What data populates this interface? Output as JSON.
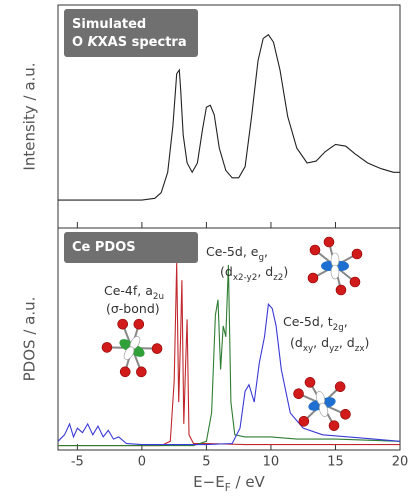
{
  "chart_data": [
    {
      "type": "line",
      "title": [
        [
          {
            "text": "Simulated"
          }
        ],
        [
          {
            "text": "O "
          },
          {
            "text": "K",
            "italic": true
          },
          {
            "text": "XAS spectra"
          }
        ]
      ],
      "y_label": "Intensity / a.u.",
      "xlim": [
        -6.5,
        20
      ],
      "xticks": [
        -5,
        0,
        5,
        10,
        15,
        20
      ],
      "ylim": [
        -0.15,
        1.05
      ],
      "series": [
        {
          "color": "#222222",
          "x": [
            -6.5,
            0,
            1,
            1.5,
            2,
            2.4,
            2.7,
            2.9,
            3.0,
            3.2,
            3.5,
            3.9,
            4.3,
            4.7,
            5.0,
            5.3,
            5.6,
            6.0,
            6.5,
            7.0,
            7.5,
            8.0,
            8.5,
            9.0,
            9.4,
            9.8,
            10.2,
            10.7,
            11.3,
            12.0,
            12.8,
            13.5,
            14.2,
            15.0,
            15.8,
            16.5,
            17.5,
            18.5,
            19.5,
            20
          ],
          "values": [
            0,
            0,
            0.01,
            0.04,
            0.15,
            0.4,
            0.68,
            0.7,
            0.6,
            0.35,
            0.2,
            0.15,
            0.2,
            0.38,
            0.5,
            0.51,
            0.46,
            0.28,
            0.16,
            0.12,
            0.12,
            0.18,
            0.45,
            0.75,
            0.87,
            0.89,
            0.85,
            0.7,
            0.45,
            0.28,
            0.2,
            0.21,
            0.26,
            0.3,
            0.29,
            0.25,
            0.2,
            0.17,
            0.15,
            0.15
          ]
        }
      ]
    },
    {
      "type": "line",
      "title": [
        [
          {
            "text": "Ce PDOS"
          }
        ]
      ],
      "y_label": "PDOS / a.u.",
      "x_label": [
        {
          "text": "E−E"
        },
        {
          "text": "F",
          "sub": true
        },
        {
          "text": " / eV"
        }
      ],
      "xlim": [
        -6.5,
        20
      ],
      "xticks": [
        -5,
        0,
        5,
        10,
        15,
        20
      ],
      "ylim": [
        -0.02,
        1
      ],
      "annotations": [
        [
          [
            {
              "text": "Ce-4f, a"
            },
            {
              "text": "2u",
              "sub": true
            }
          ],
          [
            {
              "text": "(σ-bond)"
            }
          ]
        ],
        [
          [
            {
              "text": "Ce-5d, e"
            },
            {
              "text": "g",
              "sub": true
            },
            {
              "text": ","
            }
          ],
          [
            {
              "text": "(d"
            },
            {
              "text": "x2-y2",
              "sub": true
            },
            {
              "text": ", d"
            },
            {
              "text": "z2",
              "sub": true
            },
            {
              "text": ")"
            }
          ]
        ],
        [
          [
            {
              "text": "Ce-5d, t"
            },
            {
              "text": "2g",
              "sub": true
            },
            {
              "text": ","
            }
          ],
          [
            {
              "text": "(d"
            },
            {
              "text": "xy",
              "sub": true
            },
            {
              "text": ", d"
            },
            {
              "text": "yz",
              "sub": true
            },
            {
              "text": ", d"
            },
            {
              "text": "zx",
              "sub": true
            },
            {
              "text": ")"
            }
          ]
        ]
      ],
      "series": [
        {
          "color": "#c0282d",
          "x": [
            -6.5,
            1.5,
            2.2,
            2.5,
            2.7,
            2.85,
            3.0,
            3.1,
            3.25,
            3.4,
            3.5,
            3.65,
            4.0,
            5,
            8,
            12,
            20
          ],
          "values": [
            0,
            0,
            0.02,
            0.3,
            0.84,
            0.2,
            0.5,
            0.76,
            0.1,
            0.4,
            0.58,
            0.05,
            0.01,
            0.01,
            0.005,
            0.005,
            0.005
          ]
        },
        {
          "color": "#2e7d32",
          "x": [
            -6.5,
            4,
            5.0,
            5.4,
            5.7,
            5.9,
            6.1,
            6.3,
            6.5,
            6.7,
            6.9,
            7.2,
            8,
            10,
            12,
            15,
            20
          ],
          "values": [
            0,
            0,
            0.02,
            0.15,
            0.6,
            0.67,
            0.35,
            0.55,
            0.5,
            0.83,
            0.2,
            0.05,
            0.04,
            0.04,
            0.03,
            0.03,
            0.02
          ]
        },
        {
          "color": "#3a3ad6",
          "x": [
            -6.5,
            -6,
            -5.6,
            -5.3,
            -5,
            -4.6,
            -4.2,
            -3.8,
            -3.4,
            -3,
            -2.6,
            -2.2,
            -1.8,
            -1.2,
            0,
            5,
            7,
            7.6,
            8.0,
            8.3,
            8.7,
            9.1,
            9.5,
            9.8,
            10.1,
            10.4,
            10.8,
            11.5,
            12.5,
            14,
            16,
            18,
            20
          ],
          "values": [
            0.02,
            0.05,
            0.1,
            0.04,
            0.08,
            0.06,
            0.1,
            0.05,
            0.09,
            0.04,
            0.07,
            0.03,
            0.04,
            0.01,
            0.005,
            0.005,
            0.01,
            0.08,
            0.25,
            0.28,
            0.2,
            0.38,
            0.5,
            0.65,
            0.63,
            0.55,
            0.35,
            0.15,
            0.08,
            0.05,
            0.04,
            0.03,
            0.02
          ]
        }
      ]
    }
  ]
}
